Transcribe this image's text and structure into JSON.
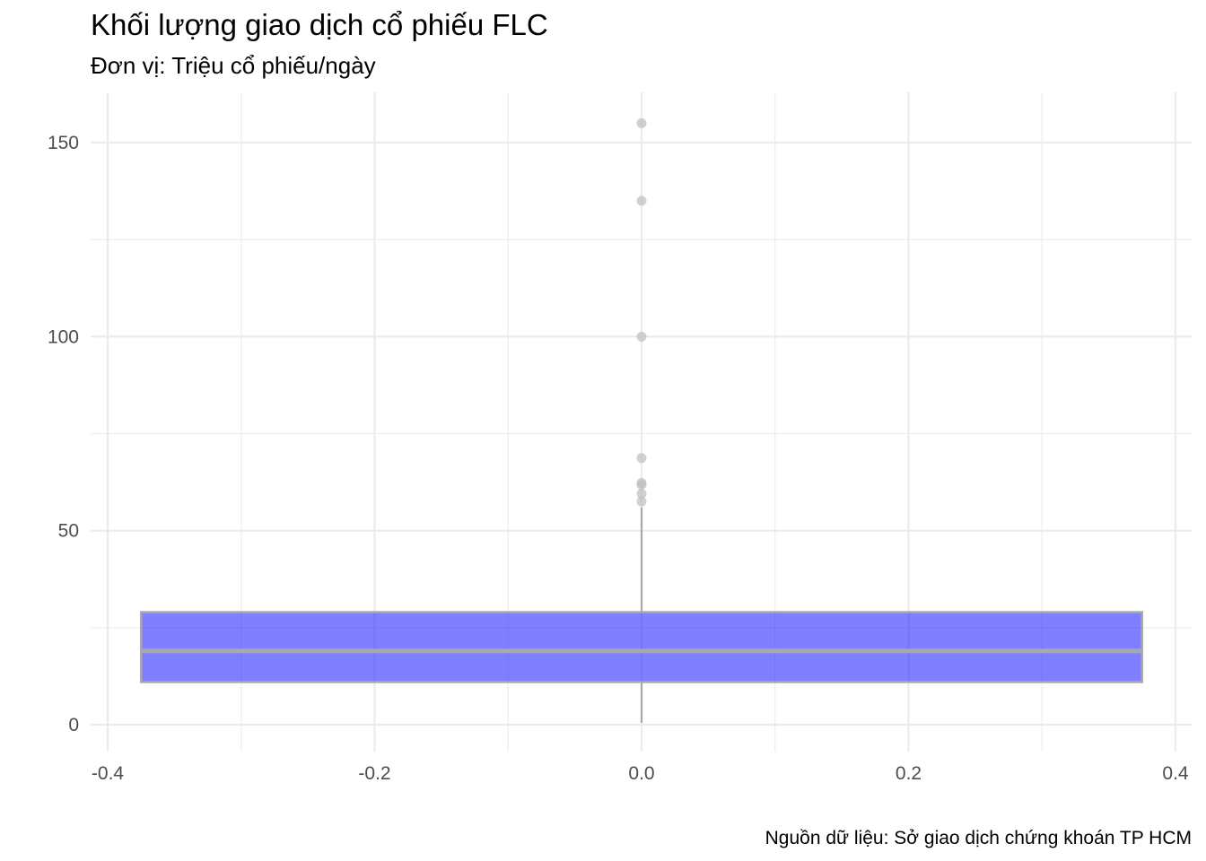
{
  "chart_data": {
    "type": "boxplot",
    "title": "Khối lượng giao dịch cổ phiếu FLC",
    "subtitle": "Đơn vị: Triệu cổ phiếu/ngày",
    "caption": "Nguồn dữ liệu: Sở giao dịch chứng khoán TP HCM",
    "xlabel": "",
    "ylabel": "",
    "xlim": [
      -0.4,
      0.4
    ],
    "ylim": [
      0,
      155
    ],
    "x_ticks": [
      -0.4,
      -0.2,
      0.0,
      0.2,
      0.4
    ],
    "x_tick_labels": [
      "-0.4",
      "-0.2",
      "0.0",
      "0.2",
      "0.4"
    ],
    "x_minor_ticks": [
      -0.3,
      -0.1,
      0.1,
      0.3
    ],
    "y_ticks": [
      0,
      50,
      100,
      150
    ],
    "y_tick_labels": [
      "0",
      "50",
      "100",
      "150"
    ],
    "y_minor_ticks": [
      25,
      75,
      125
    ],
    "grid": true,
    "box": {
      "x_center": 0.0,
      "x_left": -0.375,
      "x_right": 0.375,
      "whisker_low": 0.5,
      "q1": 11,
      "median": 19,
      "q3": 29,
      "whisker_high": 56,
      "fill_color": "#0000ff",
      "fill_opacity": 0.5,
      "line_color": "#a9a9a9"
    },
    "outliers": [
      57.5,
      59.5,
      61.8,
      62.3,
      68.7,
      100,
      135,
      155
    ],
    "outlier_color": "#bebebe"
  }
}
